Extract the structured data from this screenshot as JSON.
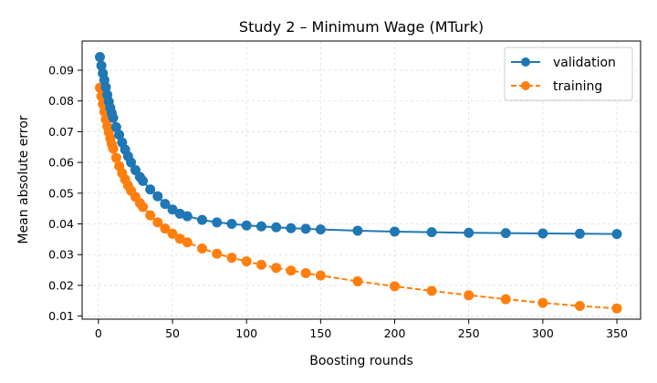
{
  "chart_data": {
    "type": "line",
    "title": "Study 2 – Minimum Wage (MTurk)",
    "xlabel": "Boosting rounds",
    "ylabel": "Mean absolute error",
    "xlim": [
      -11,
      366
    ],
    "ylim": [
      0.009,
      0.0995
    ],
    "xticks": [
      0,
      50,
      100,
      150,
      200,
      250,
      300,
      350
    ],
    "yticks": [
      0.01,
      0.02,
      0.03,
      0.04,
      0.05,
      0.06,
      0.07,
      0.08,
      0.09
    ],
    "ytick_labels": [
      "0.01",
      "0.02",
      "0.03",
      "0.04",
      "0.05",
      "0.06",
      "0.07",
      "0.08",
      "0.09"
    ],
    "grid": true,
    "legend_position": "top-right",
    "series": [
      {
        "name": "validation",
        "color": "#1f77b4",
        "linestyle": "solid",
        "marker": "circle",
        "x": [
          1,
          2,
          3,
          4,
          5,
          6,
          7,
          8,
          9,
          10,
          12,
          14,
          16,
          18,
          20,
          22,
          25,
          28,
          30,
          35,
          40,
          45,
          50,
          55,
          60,
          70,
          80,
          90,
          100,
          110,
          120,
          130,
          140,
          150,
          175,
          200,
          225,
          250,
          275,
          300,
          325,
          350
        ],
        "y": [
          0.0943,
          0.0915,
          0.089,
          0.0868,
          0.0845,
          0.082,
          0.0798,
          0.0778,
          0.076,
          0.0745,
          0.0715,
          0.069,
          0.0665,
          0.0642,
          0.062,
          0.06,
          0.0575,
          0.0553,
          0.054,
          0.0512,
          0.049,
          0.0465,
          0.0447,
          0.0433,
          0.0425,
          0.0413,
          0.0405,
          0.04,
          0.0395,
          0.0392,
          0.0389,
          0.0386,
          0.0384,
          0.0382,
          0.0378,
          0.0375,
          0.0373,
          0.0371,
          0.037,
          0.0369,
          0.0368,
          0.0367
        ]
      },
      {
        "name": "training",
        "color": "#ff7f0e",
        "linestyle": "dashed",
        "marker": "circle",
        "x": [
          1,
          2,
          3,
          4,
          5,
          6,
          7,
          8,
          9,
          10,
          12,
          14,
          16,
          18,
          20,
          22,
          25,
          28,
          30,
          35,
          40,
          45,
          50,
          55,
          60,
          70,
          80,
          90,
          100,
          110,
          120,
          130,
          140,
          150,
          175,
          200,
          225,
          250,
          275,
          300,
          325,
          350
        ],
        "y": [
          0.0843,
          0.0815,
          0.079,
          0.0765,
          0.074,
          0.0718,
          0.0698,
          0.0678,
          0.066,
          0.0645,
          0.0615,
          0.0588,
          0.0565,
          0.0545,
          0.0525,
          0.0508,
          0.0488,
          0.0468,
          0.0455,
          0.0428,
          0.0405,
          0.0385,
          0.0368,
          0.0352,
          0.034,
          0.032,
          0.0303,
          0.029,
          0.0278,
          0.0267,
          0.0257,
          0.0248,
          0.024,
          0.0232,
          0.0213,
          0.0197,
          0.0182,
          0.0168,
          0.0155,
          0.0143,
          0.0133,
          0.0125
        ]
      }
    ]
  }
}
